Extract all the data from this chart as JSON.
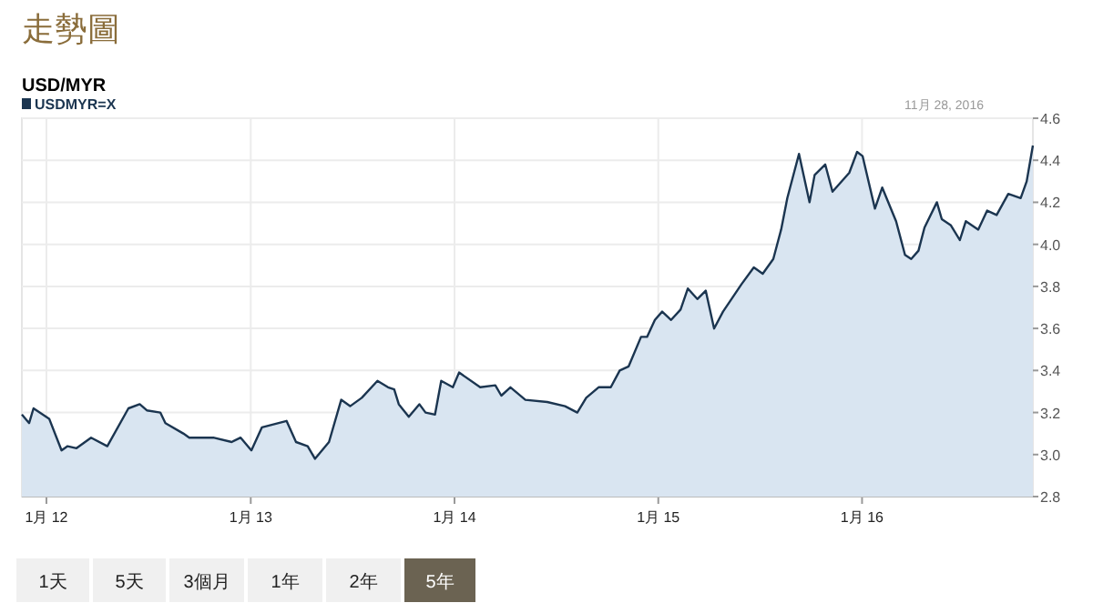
{
  "chart_data": {
    "type": "area",
    "title": "走勢圖",
    "subtitle": "USD/MYR",
    "annotations": [
      "11月 28, 2016",
      "1天",
      "5天",
      "3個月",
      "1年",
      "2年",
      "5年"
    ],
    "x": [
      "2011-11-18",
      "2011-12-01",
      "2011-12-09",
      "2012-01-06",
      "2012-01-28",
      "2012-02-08",
      "2012-02-24",
      "2012-03-21",
      "2012-04-19",
      "2012-05-27",
      "2012-06-16",
      "2012-06-29",
      "2012-07-23",
      "2012-08-01",
      "2012-09-02",
      "2012-09-13",
      "2012-10-26",
      "2012-11-28",
      "2012-12-14",
      "2013-01-02",
      "2013-01-21",
      "2013-03-06",
      "2013-03-23",
      "2013-04-13",
      "2013-04-26",
      "2013-05-21",
      "2013-06-12",
      "2013-06-28",
      "2013-07-19",
      "2013-08-16",
      "2013-09-04",
      "2013-09-15",
      "2013-09-23",
      "2013-10-11",
      "2013-10-30",
      "2013-11-10",
      "2013-11-27",
      "2013-12-08",
      "2013-12-29",
      "2014-01-09",
      "2014-02-16",
      "2014-03-15",
      "2014-03-26",
      "2014-04-11",
      "2014-05-08",
      "2014-06-16",
      "2014-07-18",
      "2014-08-09",
      "2014-08-25",
      "2014-09-16",
      "2014-10-08",
      "2014-10-24",
      "2014-11-09",
      "2014-12-01",
      "2014-12-12",
      "2014-12-26",
      "2015-01-08",
      "2015-01-24",
      "2015-02-10",
      "2015-02-23",
      "2015-03-12",
      "2015-03-27",
      "2015-04-11",
      "2015-04-27",
      "2015-05-30",
      "2015-06-21",
      "2015-07-07",
      "2015-07-26",
      "2015-08-09",
      "2015-08-20",
      "2015-09-10",
      "2015-09-29",
      "2015-10-08",
      "2015-10-27",
      "2015-11-09",
      "2015-12-09",
      "2015-12-23",
      "2016-01-02",
      "2016-01-24",
      "2016-02-06",
      "2016-03-02",
      "2016-03-18",
      "2016-03-29",
      "2016-04-11",
      "2016-04-22",
      "2016-05-14",
      "2016-05-23",
      "2016-06-08",
      "2016-06-24",
      "2016-07-05",
      "2016-07-27",
      "2016-08-12",
      "2016-08-29",
      "2016-09-19",
      "2016-10-11",
      "2016-10-22",
      "2016-11-02"
    ],
    "series": [
      {
        "name": "USDMYR=X",
        "color": "#1b3550",
        "values": [
          3.19,
          3.15,
          3.22,
          3.17,
          3.02,
          3.04,
          3.03,
          3.08,
          3.04,
          3.22,
          3.24,
          3.21,
          3.2,
          3.15,
          3.1,
          3.08,
          3.08,
          3.06,
          3.08,
          3.02,
          3.13,
          3.16,
          3.06,
          3.04,
          2.98,
          3.06,
          3.26,
          3.23,
          3.27,
          3.35,
          3.32,
          3.31,
          3.24,
          3.18,
          3.24,
          3.2,
          3.19,
          3.35,
          3.32,
          3.39,
          3.32,
          3.33,
          3.28,
          3.32,
          3.26,
          3.25,
          3.23,
          3.2,
          3.27,
          3.32,
          3.32,
          3.4,
          3.42,
          3.56,
          3.56,
          3.64,
          3.68,
          3.64,
          3.69,
          3.79,
          3.74,
          3.78,
          3.6,
          3.68,
          3.81,
          3.89,
          3.86,
          3.93,
          4.07,
          4.22,
          4.43,
          4.2,
          4.33,
          4.38,
          4.25,
          4.34,
          4.44,
          4.42,
          4.17,
          4.27,
          4.11,
          3.95,
          3.93,
          3.97,
          4.08,
          4.2,
          4.12,
          4.09,
          4.02,
          4.11,
          4.07,
          4.16,
          4.14,
          4.24,
          4.22,
          4.3,
          4.47
        ]
      }
    ],
    "xlim": [
      "2011-11-18",
      "2016-11-02"
    ],
    "xticks": [
      {
        "value": "2012-01-01",
        "label": "1月 12"
      },
      {
        "value": "2013-01-01",
        "label": "1月 13"
      },
      {
        "value": "2014-01-01",
        "label": "1月 14"
      },
      {
        "value": "2015-01-01",
        "label": "1月 15"
      },
      {
        "value": "2016-01-01",
        "label": "1月 16"
      }
    ],
    "ylim": [
      2.8,
      4.6
    ],
    "yticks": [
      2.8,
      {
        "value": 3.0,
        "label": "3.0"
      },
      3.2,
      3.4,
      3.6,
      3.8,
      {
        "value": 4.0,
        "label": "4.0"
      },
      4.2,
      4.4,
      4.6
    ],
    "grid": true,
    "legend": "top left"
  }
}
